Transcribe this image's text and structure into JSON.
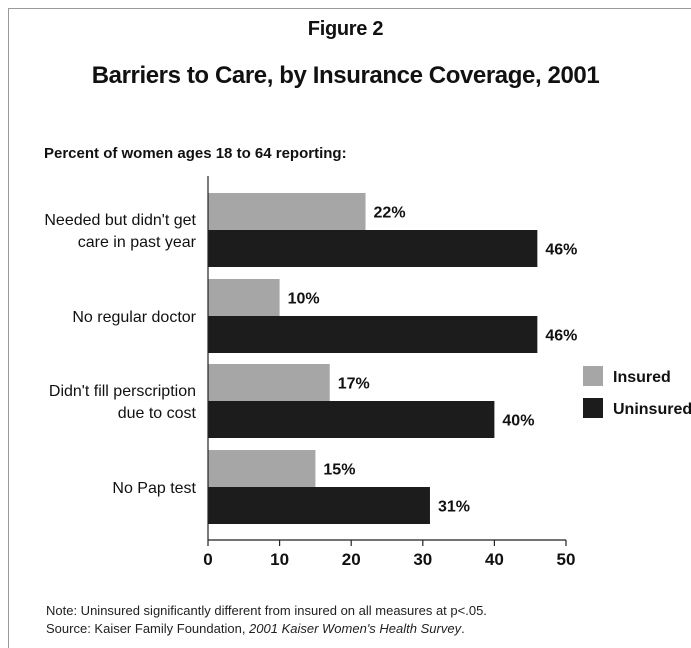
{
  "figure_label": "Figure 2",
  "chart_data": {
    "type": "bar",
    "orientation": "horizontal",
    "title": "Barriers to Care, by Insurance Coverage, 2001",
    "subtitle": "Percent of women ages 18 to 64 reporting:",
    "categories": [
      [
        "Needed but didn't get",
        "care in past year"
      ],
      [
        "No regular doctor"
      ],
      [
        "Didn't fill perscription",
        "due to cost"
      ],
      [
        "No Pap test"
      ]
    ],
    "series": [
      {
        "name": "Insured",
        "values": [
          22,
          10,
          17,
          15
        ],
        "labels": [
          "22%",
          "10%",
          "17%",
          "15%"
        ],
        "color": "#a6a6a6"
      },
      {
        "name": "Uninsured",
        "values": [
          46,
          46,
          40,
          31
        ],
        "labels": [
          "46%",
          "46%",
          "40%",
          "31%"
        ],
        "color": "#1c1c1c"
      }
    ],
    "x_ticks": [
      "0",
      "10",
      "20",
      "30",
      "40",
      "50"
    ],
    "xlim": [
      0,
      50
    ],
    "grid": false,
    "legend_position": "right"
  },
  "footnotes": {
    "note": "Note:  Uninsured significantly different from insured on all measures at p<.05.",
    "source_prefix": "Source: Kaiser Family Foundation, ",
    "source_title": "2001 Kaiser Women's Health Survey",
    "source_suffix": "."
  }
}
